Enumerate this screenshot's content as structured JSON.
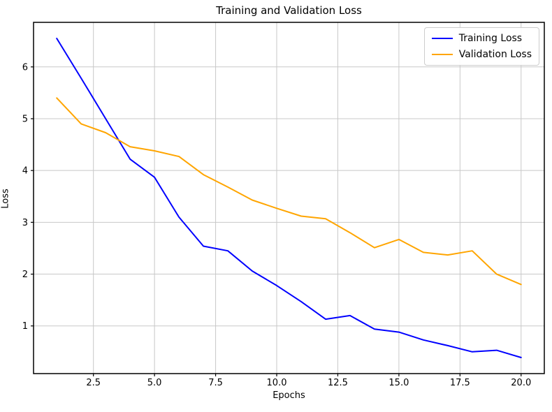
{
  "chart_data": {
    "type": "line",
    "title": "Training and Validation Loss",
    "xlabel": "Epochs",
    "ylabel": "Loss",
    "x": [
      1,
      2,
      3,
      4,
      5,
      6,
      7,
      8,
      9,
      10,
      11,
      12,
      13,
      14,
      15,
      16,
      17,
      18,
      19,
      20
    ],
    "series": [
      {
        "name": "Training Loss",
        "color": "#0000ff",
        "values": [
          6.55,
          5.78,
          5.0,
          4.22,
          3.87,
          3.1,
          2.54,
          2.45,
          2.06,
          1.78,
          1.47,
          1.13,
          1.2,
          0.94,
          0.88,
          0.73,
          0.62,
          0.5,
          0.53,
          0.39
        ]
      },
      {
        "name": "Validation Loss",
        "color": "#ffa500",
        "values": [
          5.4,
          4.9,
          4.73,
          4.46,
          4.38,
          4.27,
          3.92,
          3.68,
          3.43,
          3.27,
          3.12,
          3.07,
          2.8,
          2.51,
          2.67,
          2.42,
          2.37,
          2.45,
          2.0,
          1.8
        ]
      }
    ],
    "xlim": [
      0.05,
      20.95
    ],
    "ylim": [
      0.08,
      6.86
    ],
    "xticks": {
      "values": [
        2.5,
        5,
        7.5,
        10,
        12.5,
        15,
        17.5,
        20
      ],
      "labels": [
        "2.5",
        "5.0",
        "7.5",
        "10.0",
        "12.5",
        "15.0",
        "17.5",
        "20.0"
      ]
    },
    "yticks": {
      "values": [
        1,
        2,
        3,
        4,
        5,
        6
      ],
      "labels": [
        "1",
        "2",
        "3",
        "4",
        "5",
        "6"
      ]
    },
    "grid": true,
    "legend_position": "upper right",
    "colors": {
      "grid": "#c8c8c8",
      "spine": "#000000",
      "tick_text": "#000000",
      "background": "#ffffff"
    }
  }
}
